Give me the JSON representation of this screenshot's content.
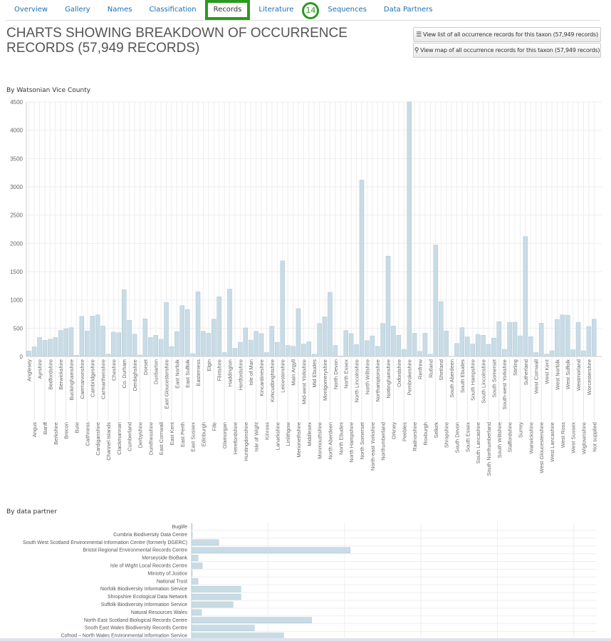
{
  "tabs": [
    {
      "label": "Overview"
    },
    {
      "label": "Gallery"
    },
    {
      "label": "Names"
    },
    {
      "label": "Classification"
    },
    {
      "label": "Records",
      "active": true
    },
    {
      "label": "Literature"
    },
    {
      "label": "Sequences"
    },
    {
      "label": "Data Partners"
    }
  ],
  "annotation_badge": "14",
  "page_title": "CHARTS SHOWING BREAKDOWN OF OCCURRENCE RECORDS (57,949 RECORDS)",
  "buttons": {
    "list": {
      "icon": "list-icon",
      "label": "View list of all occurrence records for this taxon (57,949 records)"
    },
    "map": {
      "icon": "map-marker-icon",
      "label": "View map of all occurrence records for this taxon (57,949 records)"
    }
  },
  "colors": {
    "bar": "#c9dce6",
    "bar_stroke": "#a9c4d3",
    "link": "#1a6fb5",
    "highlight": "#2a9a1e"
  },
  "chart_data": [
    {
      "type": "bar",
      "title": "By Watsonian Vice County",
      "ylim": [
        0,
        4500
      ],
      "yticks": [
        0,
        500,
        1000,
        1500,
        2000,
        2500,
        3000,
        3500,
        4000,
        4500
      ],
      "grid": true,
      "categories": [
        "Anglesey",
        "Angus",
        "Ayrshire",
        "Banff",
        "Bedfordshire",
        "Berkshire",
        "Berwickshire",
        "Brecon",
        "Buckinghamshire",
        "Bute",
        "Caernarvonshire",
        "Caithness",
        "Cambridgeshire",
        "Cardiganshire",
        "Carmarthenshire",
        "Channel Islands",
        "Cheshire",
        "Clackmannan",
        "Co. Durham",
        "Cumberland",
        "Denbighshire",
        "Derbyshire",
        "Dorset",
        "Dumfriesshire",
        "Dunbarton",
        "East Cornwall",
        "East Gloucestershire",
        "East Kent",
        "East Norfolk",
        "East Perth",
        "East Suffolk",
        "East Sussex",
        "Easterness",
        "Edinburgh",
        "Elgin",
        "Fife",
        "Flintshire",
        "Glamorgan",
        "Haddington",
        "Herefordshire",
        "Hertfordshire",
        "Huntingdonshire",
        "Isle of Man",
        "Isle of Wight",
        "Kincardineshire",
        "Kinross",
        "Kirkcudbrightshire",
        "Lanarkshire",
        "Leicestershire",
        "Linlithgow",
        "Main Argyll",
        "Merionethshire",
        "Mid-west Yorkshire",
        "Middlesex",
        "Mid Ebudes",
        "Monmouthshire",
        "Montgomeryshire",
        "North Aberdeen",
        "North Devon",
        "North Ebudes",
        "North Essex",
        "North Hampshire",
        "North Lincolnshire",
        "North Somerset",
        "North Wiltshire",
        "North-east Yorkshire",
        "Northamptonshire",
        "Northumberland",
        "Nottinghamshire",
        "Orkney",
        "Oxfordshire",
        "Peebles",
        "Pembrokeshire",
        "Radnorshire",
        "Renfrew",
        "Roxburgh",
        "Rutland",
        "Selkirk",
        "Shetland",
        "Shropshire",
        "South Aberdeen",
        "South Devon",
        "South Ebudes",
        "South Essex",
        "South Hampshire",
        "South Lancashire",
        "South Lincolnshire",
        "South Northumberland",
        "South Somerset",
        "South Wiltshire",
        "South-west Yorkshire",
        "Staffordshire",
        "Stirling",
        "Surrey",
        "Sutherland",
        "Warwickshire",
        "West Cornwall",
        "West Gloucestershire",
        "West Kent",
        "West Lancashire",
        "West Norfolk",
        "West Ross",
        "West Suffolk",
        "West Sussex",
        "Westmorland",
        "Wigtownshire",
        "Worcestershire",
        "Not supplied"
      ],
      "values": [
        95,
        170,
        335,
        285,
        305,
        335,
        460,
        490,
        510,
        20,
        710,
        450,
        715,
        735,
        540,
        40,
        430,
        420,
        1180,
        640,
        395,
        25,
        665,
        335,
        375,
        305,
        955,
        175,
        440,
        900,
        830,
        50,
        1145,
        445,
        410,
        660,
        1055,
        70,
        1190,
        145,
        250,
        505,
        290,
        445,
        405,
        70,
        535,
        250,
        1690,
        195,
        180,
        845,
        220,
        260,
        40,
        585,
        700,
        1135,
        195,
        10,
        460,
        405,
        210,
        3120,
        280,
        365,
        180,
        585,
        1775,
        540,
        375,
        125,
        4500,
        410,
        90,
        410,
        40,
        1970,
        970,
        450,
        5,
        230,
        510,
        345,
        220,
        390,
        375,
        215,
        325,
        615,
        125,
        605,
        605,
        365,
        2120,
        350,
        70,
        590,
        40,
        100,
        655,
        735,
        730,
        120,
        605,
        100,
        530,
        660
      ]
    },
    {
      "type": "bar",
      "orientation": "horizontal",
      "title": "By data partner",
      "categories": [
        "Buglife",
        "Cumbria Biodiversity Data Centre",
        "South West Scotland Environmental Information Centre (formerly DGERC)",
        "Bristol Regional Environmental Records Centre",
        "Merseyside BioBank",
        "Isle of Wight Local Records Centre",
        "Ministry of Justice",
        "National Trust",
        "Norfolk Biodiversity Information Service",
        "Shropshire Ecological Data Network",
        "Suffolk Biodiversity Information Service",
        "Natural Resources Wales",
        "North East Scotland Biological Records Centre",
        "South East Wales Biodiversity Records Centre",
        "Cofnod – North Wales Environmental Information Service"
      ],
      "values": [
        5,
        20,
        710,
        4150,
        170,
        280,
        15,
        170,
        1290,
        1290,
        1085,
        260,
        3140,
        1645,
        2410
      ],
      "xlim": [
        0,
        10600
      ],
      "grid": true
    }
  ]
}
